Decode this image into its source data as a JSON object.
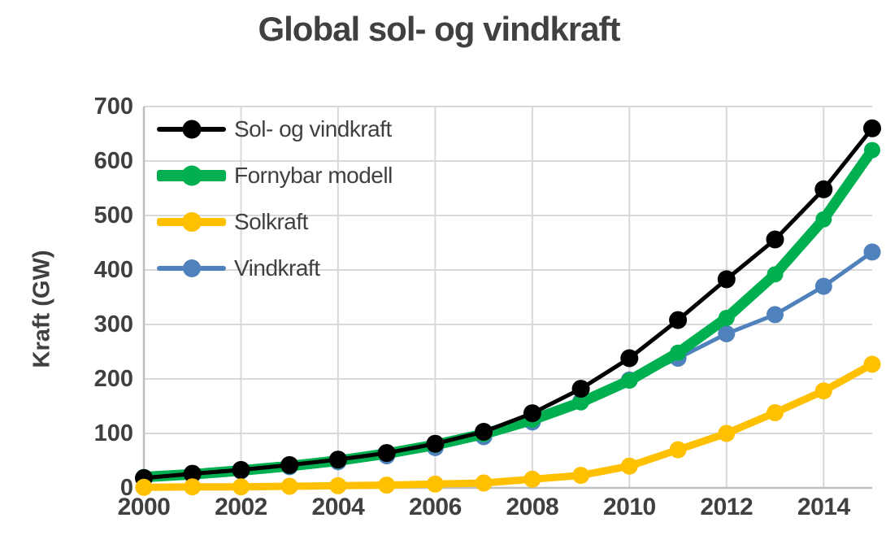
{
  "title": "Global sol- og vindkraft",
  "y_axis": {
    "label": "Kraft (GW)",
    "tick_values": [
      0,
      100,
      200,
      300,
      400,
      500,
      600,
      700
    ],
    "min": 0,
    "max": 700
  },
  "x_axis": {
    "tick_values": [
      2000,
      2002,
      2004,
      2006,
      2008,
      2010,
      2012,
      2014
    ],
    "min": 2000,
    "max": 2015
  },
  "legend": {
    "entries": [
      "Sol- og vindkraft",
      "Fornybar modell",
      "Solkraft",
      "Vindkraft"
    ],
    "position": "top-left-inside"
  },
  "colors": {
    "black_series": "#000000",
    "green_series": "#00B050",
    "yellow_series": "#FFC000",
    "blue_series": "#4F81BD",
    "grid": "#D9D9D9",
    "axis": "#BFBFBF",
    "text": "#404040",
    "background": "#FFFFFF"
  },
  "chart_data": {
    "type": "line",
    "title": "Global sol- og vindkraft",
    "xlabel": "",
    "ylabel": "Kraft (GW)",
    "x": [
      2000,
      2001,
      2002,
      2003,
      2004,
      2005,
      2006,
      2007,
      2008,
      2009,
      2010,
      2011,
      2012,
      2013,
      2014,
      2015
    ],
    "xlim": [
      2000,
      2015
    ],
    "ylim": [
      0,
      700
    ],
    "grid": true,
    "legend_position": "top-left-inside",
    "series": [
      {
        "name": "Sol- og vindkraft",
        "color": "#000000",
        "values": [
          18,
          26,
          33,
          42,
          52,
          64,
          81,
          103,
          137,
          182,
          238,
          308,
          383,
          456,
          548,
          660
        ]
      },
      {
        "name": "Fornybar modell",
        "color": "#00B050",
        "values": [
          20,
          25,
          32,
          40,
          50,
          63,
          79,
          99,
          125,
          157,
          197,
          248,
          312,
          392,
          493,
          620
        ]
      },
      {
        "name": "Solkraft",
        "color": "#FFC000",
        "values": [
          1,
          2,
          2,
          3,
          4,
          5,
          7,
          9,
          16,
          23,
          40,
          70,
          100,
          138,
          178,
          227
        ]
      },
      {
        "name": "Vindkraft",
        "color": "#4F81BD",
        "values": [
          17,
          24,
          31,
          39,
          48,
          59,
          74,
          94,
          121,
          159,
          198,
          238,
          283,
          318,
          370,
          433
        ]
      }
    ]
  }
}
